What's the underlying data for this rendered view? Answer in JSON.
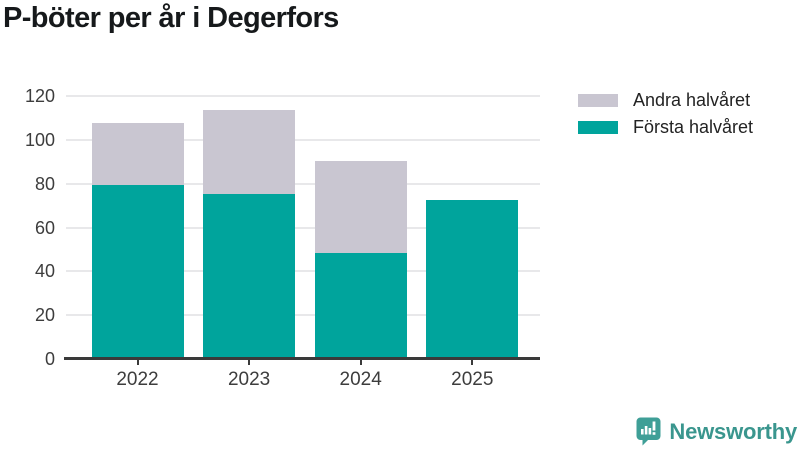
{
  "title": "P-böter per år i Degerfors",
  "chart_data": {
    "type": "bar",
    "stacked": true,
    "title": "P-böter per år i Degerfors",
    "categories": [
      "2022",
      "2023",
      "2024",
      "2025"
    ],
    "series": [
      {
        "name": "Första halvåret",
        "color": "#00a49c",
        "values": [
          79,
          75,
          48,
          72
        ]
      },
      {
        "name": "Andra halvåret",
        "color": "#c9c6d1",
        "values": [
          28,
          38,
          42,
          0
        ]
      }
    ],
    "totals": [
      107,
      113,
      90,
      72
    ],
    "xlabel": "",
    "ylabel": "",
    "yticks": [
      0,
      20,
      40,
      60,
      80,
      100,
      120
    ],
    "ylim": [
      0,
      120
    ],
    "grid": "horizontal",
    "legend_position": "top-right"
  },
  "legend": {
    "items": [
      {
        "label": "Andra halvåret",
        "color": "#c9c6d1"
      },
      {
        "label": "Första halvåret",
        "color": "#00a49c"
      }
    ]
  },
  "branding": {
    "logo_text": "Newsworthy",
    "logo_icon": "bar-chart-speech-bubble-icon",
    "icon_color": "#3f9f97",
    "text_color": "#3a968e"
  },
  "colors": {
    "first_half": "#00a49c",
    "second_half": "#c9c6d1",
    "gridline": "#e8e8ea",
    "axis": "#3a3a3a",
    "axis_text": "#3d3d3d",
    "title_text": "#16191b",
    "background": "#ffffff"
  }
}
